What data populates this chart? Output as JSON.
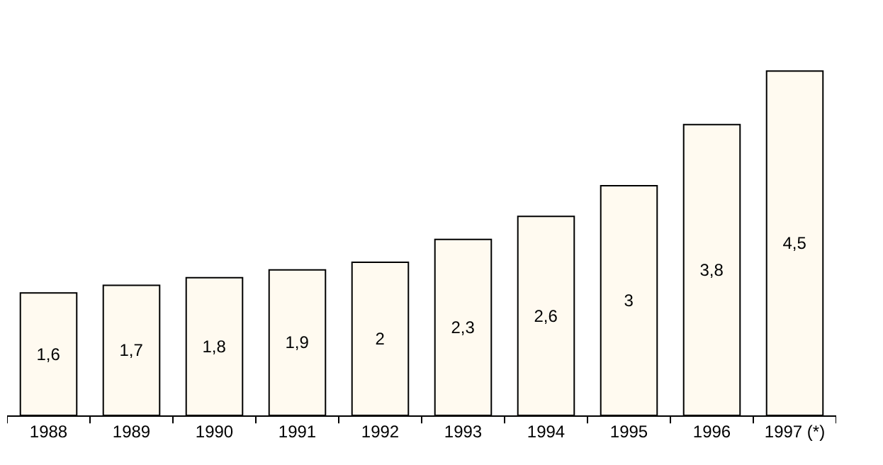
{
  "chart_data": {
    "type": "bar",
    "categories": [
      "1988",
      "1989",
      "1990",
      "1991",
      "1992",
      "1993",
      "1994",
      "1995",
      "1996",
      "1997 (*)"
    ],
    "values": [
      1.6,
      1.7,
      1.8,
      1.9,
      2,
      2.3,
      2.6,
      3,
      3.8,
      4.5
    ],
    "value_labels": [
      "1,6",
      "1,7",
      "1,8",
      "1,9",
      "2",
      "2,3",
      "2,6",
      "3",
      "3,8",
      "4,5"
    ],
    "color": "#fffaf0",
    "grid": false
  }
}
